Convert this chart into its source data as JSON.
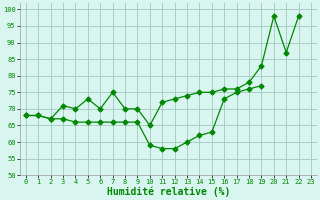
{
  "x_values": [
    0,
    1,
    2,
    3,
    4,
    5,
    6,
    7,
    8,
    9,
    10,
    11,
    12,
    13,
    14,
    15,
    16,
    17,
    18,
    19,
    20,
    21,
    22,
    23
  ],
  "upper_line": [
    68,
    68,
    67,
    71,
    70,
    73,
    70,
    75,
    70,
    70,
    65,
    72,
    73,
    74,
    75,
    75,
    76,
    76,
    78,
    83,
    98,
    87,
    98,
    null
  ],
  "lower_line": [
    68,
    68,
    67,
    67,
    66,
    66,
    66,
    66,
    66,
    66,
    59,
    58,
    58,
    60,
    62,
    63,
    73,
    75,
    76,
    77,
    null,
    null,
    null,
    null
  ],
  "line_color": "#008800",
  "marker_size": 2.5,
  "bg_color": "#d8f5f0",
  "grid_color": "#a0c8c0",
  "xlabel": "Humidité relative (%)",
  "ylim": [
    50,
    102
  ],
  "xlim": [
    -0.5,
    23.5
  ],
  "yticks": [
    50,
    55,
    60,
    65,
    70,
    75,
    80,
    85,
    90,
    95,
    100
  ],
  "xticks": [
    0,
    1,
    2,
    3,
    4,
    5,
    6,
    7,
    8,
    9,
    10,
    11,
    12,
    13,
    14,
    15,
    16,
    17,
    18,
    19,
    20,
    21,
    22,
    23
  ],
  "tick_fontsize": 5.0,
  "xlabel_fontsize": 7.0,
  "xlabel_color": "#008800",
  "line_width": 0.9
}
